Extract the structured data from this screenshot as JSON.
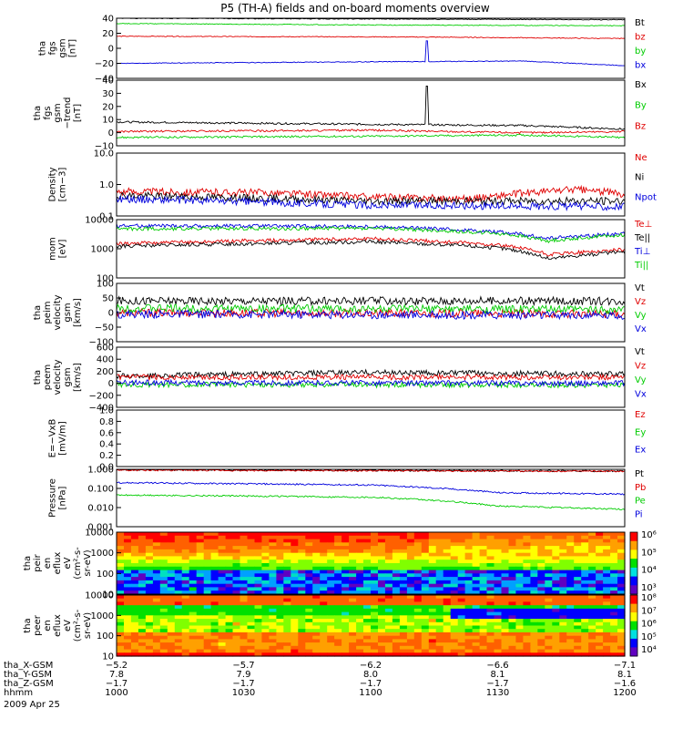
{
  "title": "P5 (TH-A) fields and on-board moments overview",
  "colors": {
    "black": "#000000",
    "red": "#e00000",
    "green": "#00cc00",
    "blue": "#0000dd",
    "axis": "#000000"
  },
  "chart_data": [
    {
      "type": "line",
      "id": "fgs",
      "ylabel": [
        "tha",
        "fgs",
        "gsm",
        "[nT]"
      ],
      "yticks": [
        "40",
        "20",
        "0",
        "−20",
        "−40"
      ],
      "ylim": [
        -40,
        40
      ],
      "series": [
        {
          "name": "Bt",
          "color": "black",
          "trend": [
            [
              0,
              40
            ],
            [
              0.5,
              39
            ],
            [
              1,
              38
            ]
          ]
        },
        {
          "name": "bz",
          "color": "red",
          "trend": [
            [
              0,
              16
            ],
            [
              0.6,
              15
            ],
            [
              1,
              13
            ]
          ]
        },
        {
          "name": "by",
          "color": "green",
          "trend": [
            [
              0,
              33
            ],
            [
              0.5,
              31
            ],
            [
              1,
              30
            ]
          ]
        },
        {
          "name": "bx",
          "color": "blue",
          "trend": [
            [
              0,
              -20
            ],
            [
              0.5,
              -18
            ],
            [
              0.8,
              -17
            ],
            [
              1,
              -23
            ]
          ]
        }
      ]
    },
    {
      "type": "line",
      "id": "fgs-dtrend",
      "ylabel": [
        "tha",
        "fgs",
        "gsm",
        "−trend",
        "[nT]"
      ],
      "yticks": [
        "40",
        "30",
        "20",
        "10",
        "0",
        "−10"
      ],
      "ylim": [
        -15,
        40
      ],
      "series": [
        {
          "name": "Bx",
          "color": "black",
          "trend": [
            [
              0,
              5
            ],
            [
              0.5,
              3
            ],
            [
              0.8,
              2
            ],
            [
              1,
              -1
            ]
          ]
        },
        {
          "name": "By",
          "color": "green",
          "trend": [
            [
              0,
              -8
            ],
            [
              0.5,
              -7
            ],
            [
              0.8,
              -6
            ],
            [
              1,
              -8
            ]
          ]
        },
        {
          "name": "Bz",
          "color": "red",
          "trend": [
            [
              0,
              -3
            ],
            [
              0.5,
              -2
            ],
            [
              0.8,
              -4
            ],
            [
              1,
              -3
            ]
          ]
        }
      ]
    },
    {
      "type": "line",
      "id": "density",
      "ylabel": [
        "Density",
        "[cm−3]"
      ],
      "yticks": [
        "10.0",
        "1.0",
        "0.1"
      ],
      "ylim": [
        0.1,
        10
      ],
      "scale": "log",
      "series": [
        {
          "name": "Ne",
          "color": "red",
          "trend": [
            [
              0,
              0.6
            ],
            [
              0.3,
              0.55
            ],
            [
              0.5,
              0.4
            ],
            [
              0.7,
              0.35
            ],
            [
              0.9,
              0.7
            ],
            [
              1,
              0.5
            ]
          ]
        },
        {
          "name": "Ni",
          "color": "black",
          "trend": [
            [
              0,
              0.45
            ],
            [
              0.5,
              0.3
            ],
            [
              1,
              0.3
            ]
          ]
        },
        {
          "name": "Npot",
          "color": "blue",
          "trend": [
            [
              0,
              0.35
            ],
            [
              0.5,
              0.22
            ],
            [
              1,
              0.2
            ]
          ]
        }
      ]
    },
    {
      "type": "line",
      "id": "temp",
      "ylabel": [
        "mom",
        "[eV]"
      ],
      "yticks": [
        "10000",
        "1000",
        "100"
      ],
      "ylim": [
        30,
        10000
      ],
      "scale": "log",
      "series": [
        {
          "name": "Te⊥",
          "color": "red",
          "trend": [
            [
              0,
              900
            ],
            [
              0.5,
              1500
            ],
            [
              0.75,
              800
            ],
            [
              0.85,
              300
            ],
            [
              1,
              500
            ]
          ]
        },
        {
          "name": "Te||",
          "color": "black",
          "trend": [
            [
              0,
              700
            ],
            [
              0.5,
              1100
            ],
            [
              0.75,
              600
            ],
            [
              0.85,
              200
            ],
            [
              1,
              400
            ]
          ]
        },
        {
          "name": "Ti⊥",
          "color": "blue",
          "trend": [
            [
              0,
              5500
            ],
            [
              0.5,
              5000
            ],
            [
              0.75,
              3000
            ],
            [
              0.85,
              1500
            ],
            [
              1,
              2500
            ]
          ]
        },
        {
          "name": "Ti||",
          "color": "green",
          "trend": [
            [
              0,
              4000
            ],
            [
              0.5,
              4200
            ],
            [
              0.75,
              2500
            ],
            [
              0.85,
              1200
            ],
            [
              1,
              2200
            ]
          ]
        }
      ]
    },
    {
      "type": "line",
      "id": "peim-v",
      "ylabel": [
        "tha",
        "peim",
        "velocity",
        "gsm",
        "[km/s]"
      ],
      "yticks": [
        "100",
        "50",
        "0",
        "−50",
        "−100"
      ],
      "ylim": [
        -100,
        100
      ],
      "series": [
        {
          "name": "Vt",
          "color": "black",
          "trend": [
            [
              0,
              40
            ],
            [
              1,
              40
            ]
          ]
        },
        {
          "name": "Vz",
          "color": "red",
          "trend": [
            [
              0,
              0
            ],
            [
              1,
              -5
            ]
          ]
        },
        {
          "name": "Vy",
          "color": "green",
          "trend": [
            [
              0,
              15
            ],
            [
              1,
              10
            ]
          ]
        },
        {
          "name": "Vx",
          "color": "blue",
          "trend": [
            [
              0,
              -5
            ],
            [
              1,
              -10
            ]
          ]
        }
      ]
    },
    {
      "type": "line",
      "id": "peem-v",
      "ylabel": [
        "tha",
        "peem",
        "velocity",
        "gsm",
        "[km/s]"
      ],
      "yticks": [
        "600",
        "400",
        "200",
        "0",
        "−200",
        "−400"
      ],
      "ylim": [
        -400,
        600
      ],
      "series": [
        {
          "name": "Vt",
          "color": "black",
          "trend": [
            [
              0,
              120
            ],
            [
              0.5,
              180
            ],
            [
              1,
              150
            ]
          ]
        },
        {
          "name": "Vz",
          "color": "red",
          "trend": [
            [
              0,
              100
            ],
            [
              1,
              100
            ]
          ]
        },
        {
          "name": "Vy",
          "color": "green",
          "trend": [
            [
              0,
              -20
            ],
            [
              1,
              -30
            ]
          ]
        },
        {
          "name": "Vx",
          "color": "blue",
          "trend": [
            [
              0,
              10
            ],
            [
              1,
              0
            ]
          ]
        }
      ]
    },
    {
      "type": "line",
      "id": "efield",
      "ylabel": [
        "E=−VxB",
        "[mV/m]"
      ],
      "yticks": [
        "1.0",
        "0.8",
        "0.6",
        "0.4",
        "0.2",
        "0.0"
      ],
      "ylim": [
        0,
        1
      ],
      "series": [
        {
          "name": "Ez",
          "color": "red",
          "trend": []
        },
        {
          "name": "Ey",
          "color": "green",
          "trend": []
        },
        {
          "name": "Ex",
          "color": "blue",
          "trend": []
        }
      ]
    },
    {
      "type": "line",
      "id": "pressure",
      "ylabel": [
        "Pressure",
        "[nPa]"
      ],
      "yticks": [
        "1.000",
        "0.100",
        "0.010",
        "0.001"
      ],
      "ylim": [
        0.001,
        1
      ],
      "scale": "log",
      "series": [
        {
          "name": "Pt",
          "color": "black",
          "trend": [
            [
              0,
              0.95
            ],
            [
              1,
              0.8
            ]
          ]
        },
        {
          "name": "Pb",
          "color": "red",
          "trend": [
            [
              0,
              0.9
            ],
            [
              1,
              0.78
            ]
          ]
        },
        {
          "name": "Pe",
          "color": "green",
          "trend": [
            [
              0,
              0.045
            ],
            [
              0.5,
              0.035
            ],
            [
              0.75,
              0.012
            ],
            [
              1,
              0.008
            ]
          ]
        },
        {
          "name": "Pi",
          "color": "blue",
          "trend": [
            [
              0,
              0.2
            ],
            [
              0.5,
              0.15
            ],
            [
              0.75,
              0.06
            ],
            [
              1,
              0.05
            ]
          ]
        }
      ]
    },
    {
      "type": "heatmap",
      "id": "peir",
      "ylabel": [
        "tha",
        "peir",
        "en",
        "eflux",
        "eV",
        "(cm²-s-",
        "sr-eV)"
      ],
      "yticks": [
        "10000",
        "1000",
        "100",
        "10"
      ],
      "ylim": [
        5,
        30000
      ],
      "scale": "log",
      "colorbar": {
        "ticks": [
          "10⁶",
          "10⁵",
          "10⁴",
          "10³"
        ]
      }
    },
    {
      "type": "heatmap",
      "id": "peer",
      "ylabel": [
        "tha",
        "peer",
        "en",
        "eflux",
        "eV",
        "(cm²-s-",
        "sr-eV)"
      ],
      "yticks": [
        "10000",
        "1000",
        "100",
        "10"
      ],
      "ylim": [
        7,
        30000
      ],
      "scale": "log",
      "colorbar": {
        "ticks": [
          "10⁸",
          "10⁷",
          "10⁶",
          "10⁵",
          "10⁴"
        ]
      }
    }
  ],
  "x_axis": {
    "rows": [
      {
        "label": "tha_X-GSM",
        "values": [
          "−5.2",
          "−5.7",
          "−6.2",
          "−6.6",
          "−7.1"
        ]
      },
      {
        "label": "tha_Y-GSM",
        "values": [
          "7.8",
          "7.9",
          "8.0",
          "8.1",
          "8.1"
        ]
      },
      {
        "label": "tha_Z-GSM",
        "values": [
          "−1.7",
          "−1.7",
          "−1.7",
          "−1.7",
          "−1.6"
        ]
      },
      {
        "label": "hhmm",
        "values": [
          "1000",
          "1030",
          "1100",
          "1130",
          "1200"
        ]
      }
    ],
    "date": "2009 Apr 25"
  }
}
